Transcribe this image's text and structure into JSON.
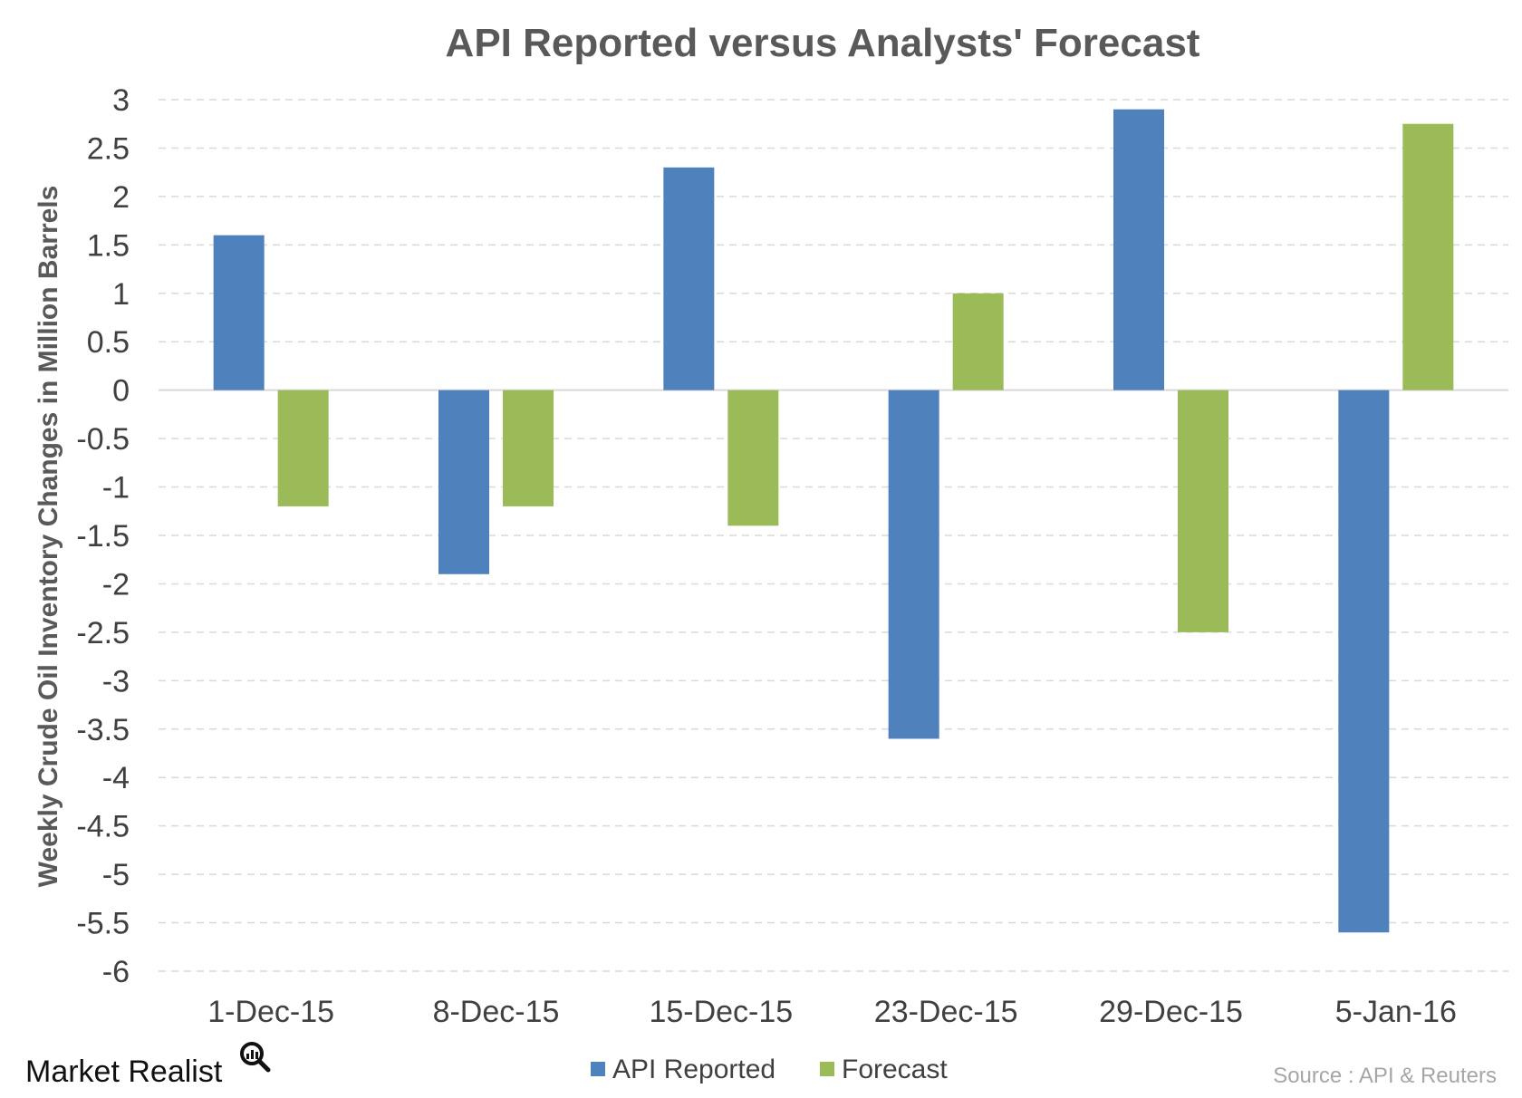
{
  "chart_data": {
    "type": "bar",
    "title": "API Reported versus Analysts' Forecast",
    "xlabel": "",
    "ylabel": "Weekly Crude Oil Inventory Changes in Million Barrels",
    "categories": [
      "1-Dec-15",
      "8-Dec-15",
      "15-Dec-15",
      "23-Dec-15",
      "29-Dec-15",
      "5-Jan-16"
    ],
    "series": [
      {
        "name": "API Reported",
        "color": "#4f81bd",
        "values": [
          1.6,
          -1.9,
          2.3,
          -3.6,
          2.9,
          -5.6
        ]
      },
      {
        "name": "Forecast",
        "color": "#9bbb59",
        "values": [
          -1.2,
          -1.2,
          -1.4,
          1.0,
          -2.5,
          2.75
        ]
      }
    ],
    "ylim": [
      -6,
      3
    ],
    "ytick_step": 0.5,
    "grid": true,
    "legend_position": "bottom"
  },
  "branding": {
    "logo_text": "Market Realist"
  },
  "source_note": "Source : API & Reuters"
}
